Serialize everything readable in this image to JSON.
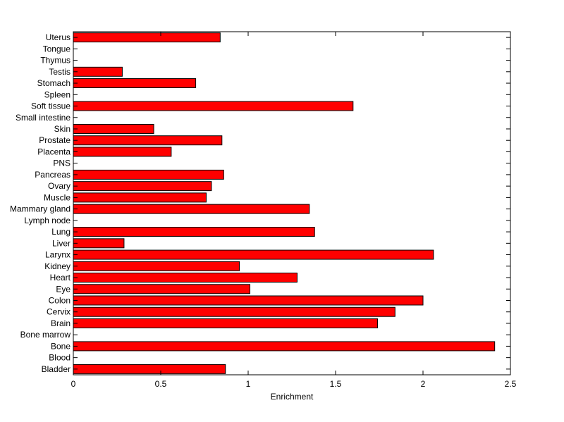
{
  "chart_data": {
    "type": "bar",
    "orientation": "horizontal",
    "xlabel": "Enrichment",
    "ylabel": "",
    "title": "",
    "xlim": [
      0,
      2.5
    ],
    "x_ticks": [
      {
        "value": 0,
        "label": "0"
      },
      {
        "value": 0.5,
        "label": "0.5"
      },
      {
        "value": 1,
        "label": "1"
      },
      {
        "value": 1.5,
        "label": "1.5"
      },
      {
        "value": 2,
        "label": "2"
      },
      {
        "value": 2.5,
        "label": "2.5"
      }
    ],
    "bar_color": "#ff0000",
    "categories": [
      "Uterus",
      "Tongue",
      "Thymus",
      "Testis",
      "Stomach",
      "Spleen",
      "Soft tissue",
      "Small intestine",
      "Skin",
      "Prostate",
      "Placenta",
      "PNS",
      "Pancreas",
      "Ovary",
      "Muscle",
      "Mammary gland",
      "Lymph node",
      "Lung",
      "Liver",
      "Larynx",
      "Kidney",
      "Heart",
      "Eye",
      "Colon",
      "Cervix",
      "Brain",
      "Bone marrow",
      "Bone",
      "Blood",
      "Bladder"
    ],
    "values": [
      0.84,
      0,
      0,
      0.28,
      0.7,
      0,
      1.6,
      0,
      0.46,
      0.85,
      0.56,
      0,
      0.86,
      0.79,
      0.76,
      1.35,
      0,
      1.38,
      0.29,
      2.06,
      0.95,
      1.28,
      1.01,
      2.0,
      1.84,
      1.74,
      0,
      2.41,
      0,
      0.87
    ]
  }
}
